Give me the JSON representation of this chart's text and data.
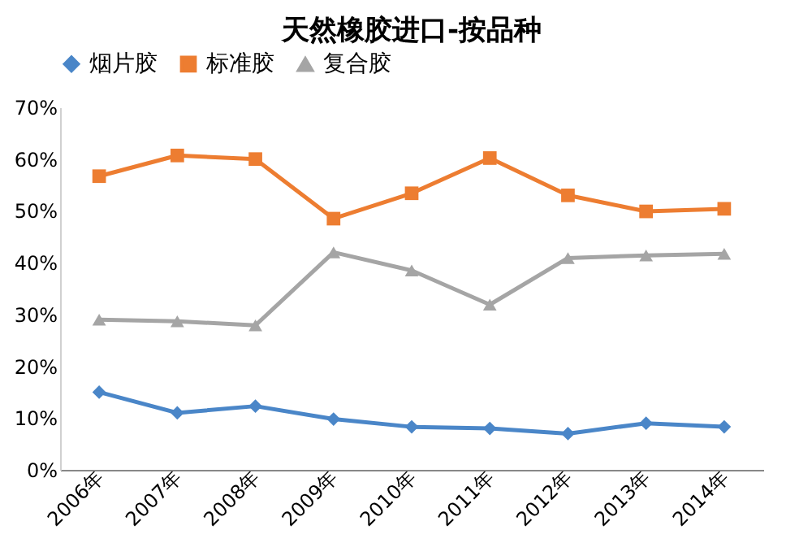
{
  "chart_data": {
    "type": "line",
    "title": "天然橡胶进口-按品种",
    "categories": [
      "2006年",
      "2007年",
      "2008年",
      "2009年",
      "2010年",
      "2011年",
      "2012年",
      "2013年",
      "2014年"
    ],
    "series": [
      {
        "name": "烟片胶",
        "color": "#4a86c8",
        "marker": "diamond",
        "values": [
          15.0,
          11.0,
          12.3,
          9.8,
          8.3,
          8.0,
          7.0,
          9.0,
          8.3
        ]
      },
      {
        "name": "标准胶",
        "color": "#ed7d31",
        "marker": "square",
        "values": [
          56.7,
          60.7,
          60.0,
          48.5,
          53.4,
          60.2,
          53.0,
          49.9,
          50.4
        ]
      },
      {
        "name": "复合胶",
        "color": "#a5a5a5",
        "marker": "triangle",
        "values": [
          29.0,
          28.7,
          27.9,
          42.0,
          38.5,
          31.9,
          40.9,
          41.4,
          41.7
        ]
      }
    ],
    "ylim": [
      0,
      70
    ],
    "yticks": [
      {
        "value": 0,
        "label": "0%"
      },
      {
        "value": 10,
        "label": "10%"
      },
      {
        "value": 20,
        "label": "20%"
      },
      {
        "value": 30,
        "label": "30%"
      },
      {
        "value": 40,
        "label": "40%"
      },
      {
        "value": 50,
        "label": "50%"
      },
      {
        "value": 60,
        "label": "60%"
      },
      {
        "value": 70,
        "label": "70%"
      }
    ],
    "grid": false,
    "legend": "top",
    "line_style": "solid"
  }
}
